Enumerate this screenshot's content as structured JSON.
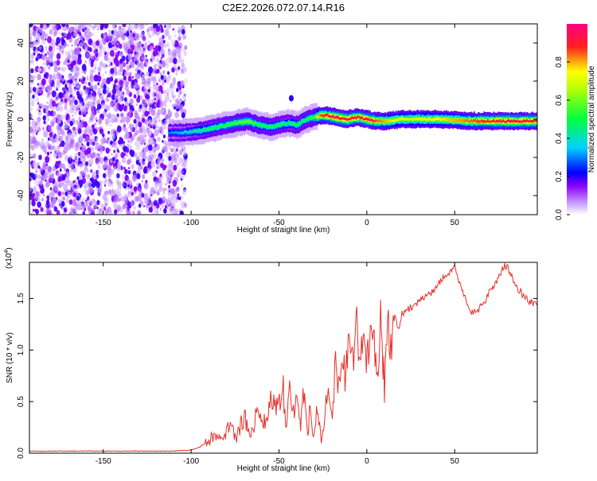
{
  "chart_data": [
    {
      "type": "heatmap",
      "title": "C2E2.2026.072.07.14.R16",
      "xlabel": "Height of straight line (km)",
      "ylabel": "Frequency (Hz)",
      "xlim": [
        -192,
        97
      ],
      "ylim": [
        -50,
        50
      ],
      "xticks": [
        "-150",
        "-100",
        "-50",
        "0",
        "50"
      ],
      "xtick_values": [
        -150,
        -100,
        -50,
        0,
        50
      ],
      "yticks": [
        "40",
        "20",
        "0",
        "-20",
        "-40"
      ],
      "ytick_values": [
        40,
        20,
        0,
        -20,
        -40
      ],
      "noise_region_x": [
        -192,
        -103
      ],
      "ridge": {
        "x": [
          -113,
          -105,
          -95,
          -85,
          -75,
          -68,
          -62,
          -55,
          -50,
          -45,
          -40,
          -35,
          -30,
          -27,
          -23,
          -18,
          -12,
          -6,
          0,
          5,
          10,
          20,
          40,
          60,
          80,
          97
        ],
        "freq": [
          -7,
          -7,
          -6,
          -4,
          -2,
          -1,
          -3,
          -4,
          -3,
          -2,
          -3,
          0,
          1,
          2,
          2,
          1,
          0,
          1,
          0,
          -1,
          -1,
          0,
          0,
          -1,
          -1,
          -1
        ],
        "amplitude": [
          0.3,
          0.35,
          0.45,
          0.5,
          0.55,
          0.6,
          0.5,
          0.5,
          0.5,
          0.45,
          0.5,
          0.5,
          0.55,
          0.85,
          0.9,
          0.95,
          0.95,
          0.9,
          0.95,
          0.85,
          0.8,
          0.7,
          0.75,
          0.85,
          0.95,
          0.9
        ]
      },
      "isolated_blob": {
        "x": -43,
        "freq": 11,
        "amplitude": 0.2
      },
      "colorbar": {
        "label": "Normalized spectral amplitude",
        "ticks": [
          "0.0",
          "0.2",
          "0.4",
          "0.6",
          "0.8"
        ],
        "tick_values": [
          0.0,
          0.2,
          0.4,
          0.6,
          0.8
        ],
        "range": [
          0,
          1
        ],
        "colors": [
          "#ffffff",
          "#8a00ff",
          "#0000ff",
          "#00d0ff",
          "#00ff40",
          "#ffff00",
          "#ff2020",
          "#ff00aa"
        ]
      }
    },
    {
      "type": "line",
      "title": "",
      "xlabel": "Height of straight line (km)",
      "ylabel": "SNR (10 * v/v)",
      "multiplier_label": "(x10",
      "multiplier_exponent": "4",
      "xlim": [
        -192,
        97
      ],
      "ylim": [
        0,
        1.85
      ],
      "xticks": [
        "-150",
        "-100",
        "-50",
        "0",
        "50"
      ],
      "xtick_values": [
        -150,
        -100,
        -50,
        0,
        50
      ],
      "yticks": [
        "0.0",
        "0.5",
        "1.0",
        "1.5"
      ],
      "ytick_values": [
        0.0,
        0.5,
        1.0,
        1.5
      ],
      "series": [
        {
          "name": "SNR",
          "color": "#e8302a",
          "x": [
            -192,
            -110,
            -100,
            -95,
            -90,
            -86,
            -82,
            -78,
            -74,
            -70,
            -66,
            -62,
            -58,
            -54,
            -50,
            -48,
            -46,
            -44,
            -42,
            -40,
            -38,
            -36,
            -34,
            -32,
            -30,
            -28,
            -26,
            -24,
            -22,
            -20,
            -18,
            -16,
            -14,
            -12,
            -10,
            -8,
            -6,
            -4,
            -2,
            0,
            2,
            4,
            6,
            8,
            10,
            12,
            14,
            16,
            18,
            20,
            24,
            28,
            32,
            36,
            40,
            44,
            48,
            50,
            52,
            56,
            60,
            64,
            68,
            72,
            76,
            78,
            80,
            84,
            88,
            92,
            97
          ],
          "y": [
            0.02,
            0.02,
            0.03,
            0.06,
            0.12,
            0.2,
            0.1,
            0.3,
            0.15,
            0.35,
            0.2,
            0.4,
            0.3,
            0.55,
            0.45,
            0.72,
            0.3,
            0.65,
            0.35,
            0.55,
            0.25,
            0.6,
            0.2,
            0.45,
            0.15,
            0.5,
            0.12,
            0.4,
            0.55,
            0.3,
            0.8,
            0.65,
            0.9,
            0.75,
            1.0,
            0.85,
            1.2,
            0.9,
            1.1,
            0.95,
            1.25,
            1.05,
            0.7,
            1.35,
            0.6,
            1.3,
            1.1,
            1.35,
            1.2,
            1.35,
            1.4,
            1.45,
            1.5,
            1.55,
            1.62,
            1.72,
            1.75,
            1.8,
            1.7,
            1.5,
            1.36,
            1.4,
            1.5,
            1.62,
            1.74,
            1.82,
            1.8,
            1.65,
            1.55,
            1.48,
            1.44
          ]
        }
      ]
    }
  ]
}
